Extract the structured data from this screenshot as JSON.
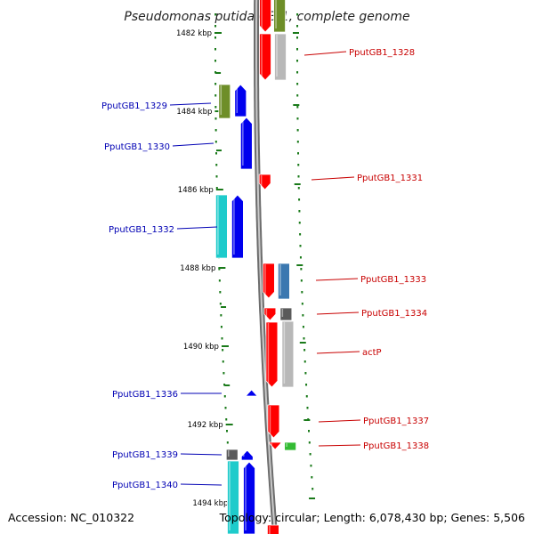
{
  "title": "Pseudomonas putida GB-1, complete genome",
  "footer": {
    "accession": "Accession: NC_010322",
    "topology": "Topology: circular; Length: 6,078,430 bp; Genes: 5,506"
  },
  "ticks": [
    "1482 kbp",
    "1484 kbp",
    "1486 kbp",
    "1488 kbp",
    "1490 kbp",
    "1492 kbp",
    "1494 kbp"
  ],
  "colors": {
    "backbone": "#8a8a8a",
    "tick": "#1a7a1a",
    "label_left": "#0000b4",
    "label_right": "#c80000",
    "red": "#ff0000",
    "blue": "#0000ee",
    "cyan": "#1ecbcb",
    "olive": "#6e8e28",
    "gray": "#b8b8b8",
    "darkgray": "#5a5a5a",
    "steelblue": "#3b78b0",
    "green": "#33bb33"
  },
  "genes": [
    {
      "id": "PputGB1_1328",
      "label": "PputGB1_1328",
      "side": "right"
    },
    {
      "id": "PputGB1_1329",
      "label": "PputGB1_1329",
      "side": "left"
    },
    {
      "id": "PputGB1_1330",
      "label": "PputGB1_1330",
      "side": "left"
    },
    {
      "id": "PputGB1_1331",
      "label": "PputGB1_1331",
      "side": "right"
    },
    {
      "id": "PputGB1_1332",
      "label": "PputGB1_1332",
      "side": "left"
    },
    {
      "id": "PputGB1_1333",
      "label": "PputGB1_1333",
      "side": "right"
    },
    {
      "id": "PputGB1_1334",
      "label": "PputGB1_1334",
      "side": "right"
    },
    {
      "id": "actP",
      "label": "actP",
      "side": "right"
    },
    {
      "id": "PputGB1_1336",
      "label": "PputGB1_1336",
      "side": "left"
    },
    {
      "id": "PputGB1_1337",
      "label": "PputGB1_1337",
      "side": "right"
    },
    {
      "id": "PputGB1_1338",
      "label": "PputGB1_1338",
      "side": "right"
    },
    {
      "id": "PputGB1_1339",
      "label": "PputGB1_1339",
      "side": "left"
    },
    {
      "id": "PputGB1_1340",
      "label": "PputGB1_1340",
      "side": "left"
    }
  ]
}
